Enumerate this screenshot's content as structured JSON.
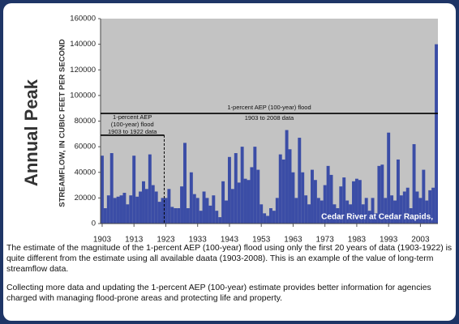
{
  "chart_data": {
    "type": "bar",
    "title": "Annual Peak",
    "y_label": "STREAMFLOW, IN CUBIC FEET PER SECOND",
    "station_label": "Cedar River at Cedar Rapids,",
    "x": [
      1903,
      1904,
      1905,
      1906,
      1907,
      1908,
      1909,
      1910,
      1911,
      1912,
      1913,
      1914,
      1915,
      1916,
      1917,
      1918,
      1919,
      1920,
      1921,
      1922,
      1923,
      1924,
      1925,
      1926,
      1927,
      1928,
      1929,
      1930,
      1931,
      1932,
      1933,
      1934,
      1935,
      1936,
      1937,
      1938,
      1939,
      1940,
      1941,
      1942,
      1943,
      1944,
      1945,
      1946,
      1947,
      1948,
      1949,
      1950,
      1951,
      1952,
      1953,
      1954,
      1955,
      1956,
      1957,
      1958,
      1959,
      1960,
      1961,
      1962,
      1963,
      1964,
      1965,
      1966,
      1967,
      1968,
      1969,
      1970,
      1971,
      1972,
      1973,
      1974,
      1975,
      1976,
      1977,
      1978,
      1979,
      1980,
      1981,
      1982,
      1983,
      1984,
      1985,
      1986,
      1987,
      1988,
      1989,
      1990,
      1991,
      1992,
      1993,
      1994,
      1995,
      1996,
      1997,
      1998,
      1999,
      2000,
      2001,
      2002,
      2003,
      2004,
      2005,
      2006,
      2007,
      2008
    ],
    "values": [
      53000,
      12000,
      22000,
      55000,
      20000,
      21000,
      22000,
      24000,
      15000,
      22000,
      53000,
      21000,
      25000,
      33000,
      27000,
      54000,
      30000,
      25000,
      17000,
      20000,
      20000,
      27000,
      13000,
      12000,
      12000,
      29000,
      63000,
      12000,
      40000,
      23000,
      20000,
      10000,
      25000,
      20000,
      14000,
      22000,
      10000,
      5000,
      33000,
      18000,
      52000,
      27000,
      55000,
      32000,
      60000,
      35000,
      34000,
      44000,
      60000,
      42000,
      15000,
      8000,
      6000,
      12000,
      10000,
      20000,
      54000,
      50000,
      73000,
      58000,
      40000,
      20000,
      67000,
      40000,
      22000,
      15000,
      42000,
      34000,
      20000,
      18000,
      30000,
      45000,
      38000,
      15000,
      12000,
      29000,
      36000,
      18000,
      15000,
      33000,
      35000,
      34000,
      15000,
      20000,
      10000,
      20000,
      8000,
      45000,
      46000,
      20000,
      71000,
      22000,
      18000,
      50000,
      22000,
      25000,
      28000,
      12000,
      62000,
      25000,
      20000,
      42000,
      18000,
      26000,
      28000,
      140000
    ],
    "color": "#3b4da6",
    "xlim": [
      1903,
      2009
    ],
    "xticks": [
      1903,
      1913,
      1923,
      1933,
      1943,
      1953,
      1963,
      1973,
      1983,
      1993,
      2003
    ],
    "ylim": [
      0,
      160000
    ],
    "yticks": [
      0,
      20000,
      40000,
      60000,
      80000,
      100000,
      120000,
      140000,
      160000
    ],
    "grid": false,
    "reference_lines": [
      {
        "value": 86000,
        "x": [
          1903,
          2009
        ],
        "labels": [
          "1-percent AEP (100-year) flood",
          "1903 to 2008 data"
        ]
      },
      {
        "value": 69000,
        "x": [
          1903,
          1923
        ],
        "labels": [
          "1-percent AEP",
          "(100-year) flood",
          "1903 to 1922 data"
        ]
      }
    ]
  },
  "paragraphs": [
    "The estimate of the magnitude of the 1-percent AEP (100-year) flood using only the first 20 years of data (1903-1922) is quite different from the estimate using all available daata (1903-2008).  This is an example of the value of long-term streamflow data.",
    "Collecting more data and updating the 1-percent AEP (100-year) estimate provides better information for agencies charged with managing flood-prone areas and protecting life and property."
  ]
}
